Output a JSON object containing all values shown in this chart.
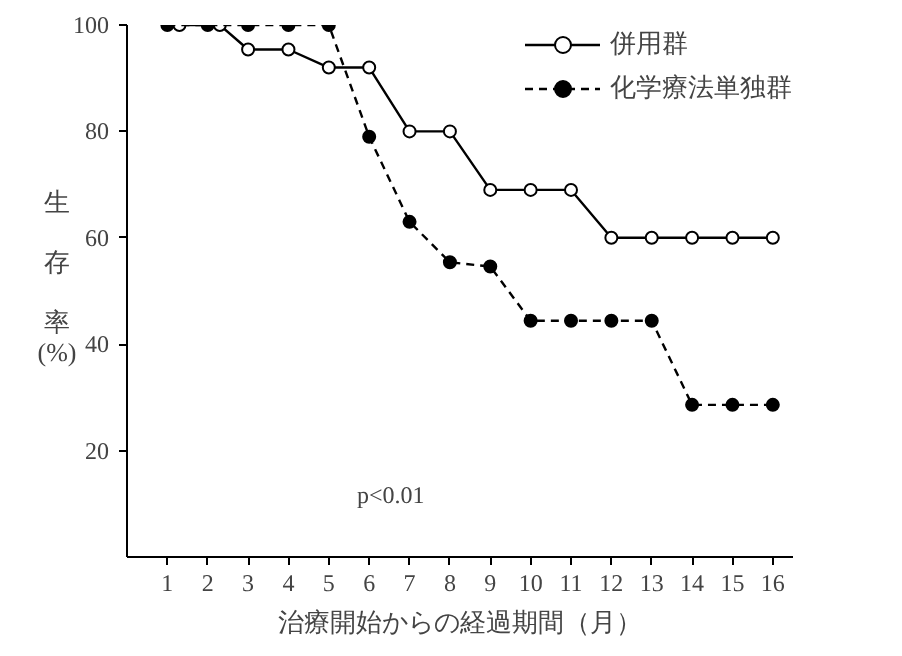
{
  "chart_data": {
    "type": "line",
    "xlabel": "治療開始からの経過期間（月）",
    "ylabel": "生存率(%)",
    "xlim": [
      0,
      16.5
    ],
    "xticks": [
      1,
      2,
      3,
      4,
      5,
      6,
      7,
      8,
      9,
      10,
      11,
      12,
      13,
      14,
      15,
      16
    ],
    "ylim": [
      0,
      100
    ],
    "yticks": [
      20,
      40,
      60,
      80,
      100
    ],
    "grid": false,
    "legend": "top right",
    "series": [
      {
        "name": "併用群",
        "color": "#000000",
        "marker": "circle",
        "line_style": "solid",
        "x": [
          1.3,
          2.3,
          3,
          4,
          5,
          6,
          7,
          8,
          9,
          10,
          11,
          12,
          13,
          14,
          15,
          16
        ],
        "values": [
          100,
          100,
          95.4,
          95.4,
          92,
          92,
          80,
          80,
          69,
          69,
          69,
          60,
          60,
          60,
          60,
          60
        ]
      },
      {
        "name": "化学療法単独群",
        "color": "#000000",
        "marker": "circle",
        "line_style": "dashed",
        "x": [
          1,
          2,
          3,
          4,
          5,
          6,
          7,
          8,
          9,
          10,
          11,
          12,
          13,
          14,
          15,
          16
        ],
        "values": [
          100,
          100,
          100,
          100,
          100,
          79,
          63,
          55.4,
          54.6,
          44.4,
          44.4,
          44.4,
          44.4,
          28.6,
          28.6,
          28.6
        ]
      }
    ],
    "annotations": [
      "p<0.01"
    ]
  }
}
